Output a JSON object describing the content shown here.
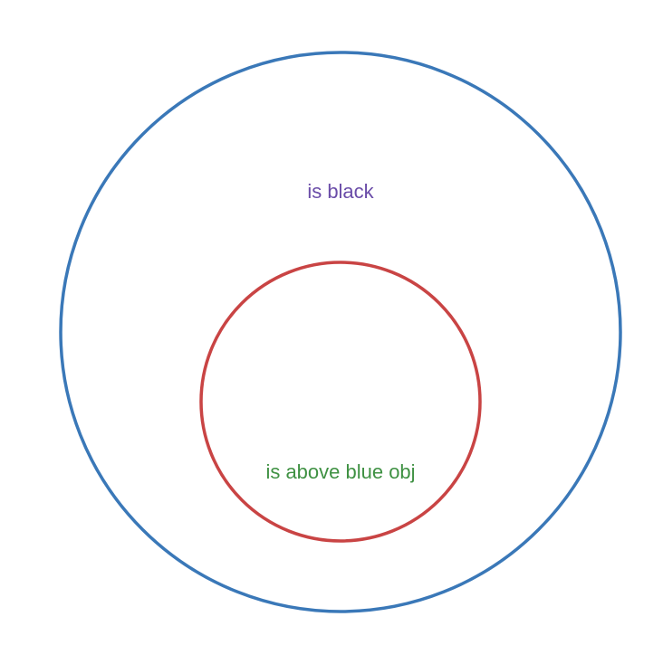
{
  "diagram": {
    "outer_set": {
      "label": "is black",
      "stroke_color": "#3a78b8",
      "label_color": "#6a4ca8"
    },
    "inner_set": {
      "label": "is above blue obj",
      "stroke_color": "#c94444",
      "label_color": "#3f9143"
    }
  }
}
